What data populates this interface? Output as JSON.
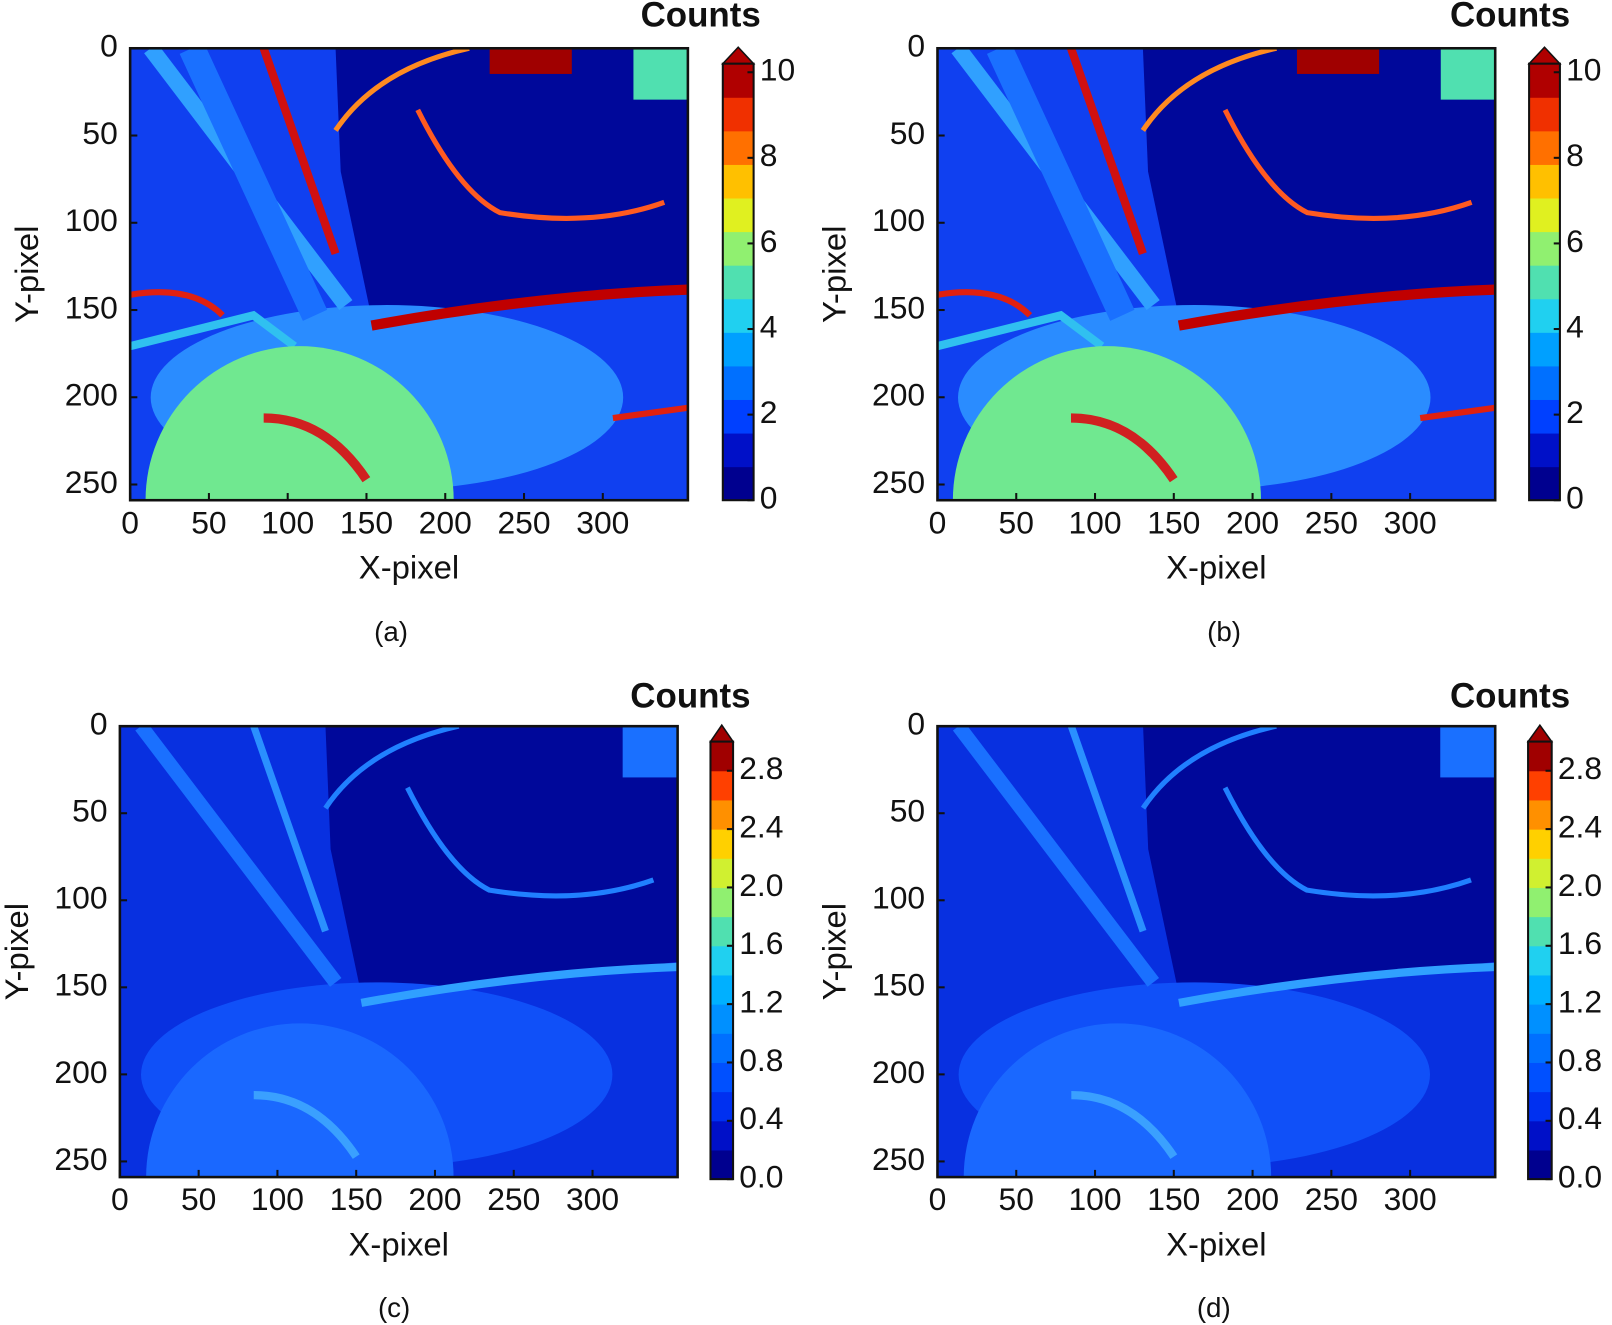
{
  "chart_data": [
    {
      "type": "heatmap",
      "caption": "(a)",
      "xlabel": "X-pixel",
      "ylabel": "Y-pixel",
      "xlim": [
        0,
        354
      ],
      "xticks": [
        0,
        50,
        100,
        150,
        200,
        250,
        300
      ],
      "ylim": [
        0,
        259
      ],
      "yticks": [
        0,
        50,
        100,
        150,
        200,
        250
      ],
      "colorbar": {
        "label": "Counts",
        "lim": [
          0,
          10.2
        ],
        "ticks": [
          0,
          2,
          4,
          6,
          8,
          10
        ],
        "extend": "max",
        "colors": [
          "#00008f",
          "#0010c8",
          "#0040ff",
          "#0070ff",
          "#00a0ff",
          "#20d0f0",
          "#50e0b0",
          "#90f070",
          "#e0f020",
          "#ffc000",
          "#ff7000",
          "#f03000",
          "#b00000"
        ]
      }
    },
    {
      "type": "heatmap",
      "caption": "(b)",
      "xlabel": "X-pixel",
      "ylabel": "Y-pixel",
      "xlim": [
        0,
        354
      ],
      "xticks": [
        0,
        50,
        100,
        150,
        200,
        250,
        300
      ],
      "ylim": [
        0,
        259
      ],
      "yticks": [
        0,
        50,
        100,
        150,
        200,
        250
      ],
      "colorbar": {
        "label": "Counts",
        "lim": [
          0,
          10.2
        ],
        "ticks": [
          0,
          2,
          4,
          6,
          8,
          10
        ],
        "extend": "max",
        "colors": [
          "#00008f",
          "#0010c8",
          "#0040ff",
          "#0070ff",
          "#00a0ff",
          "#20d0f0",
          "#50e0b0",
          "#90f070",
          "#e0f020",
          "#ffc000",
          "#ff7000",
          "#f03000",
          "#b00000"
        ]
      }
    },
    {
      "type": "heatmap",
      "caption": "(c)",
      "xlabel": "X-pixel",
      "ylabel": "Y-pixel",
      "xlim": [
        0,
        354
      ],
      "xticks": [
        0,
        50,
        100,
        150,
        200,
        250,
        300
      ],
      "ylim": [
        0,
        259
      ],
      "yticks": [
        0,
        50,
        100,
        150,
        200,
        250
      ],
      "colorbar": {
        "label": "Counts",
        "lim": [
          0,
          3.0
        ],
        "extend": "max",
        "ticks": [
          {
            "value": 0,
            "label": "0.0"
          },
          0.4,
          0.8,
          1.2,
          1.6,
          {
            "value": 2,
            "label": "2.0"
          },
          2.4,
          2.8
        ],
        "colors": [
          "#00008f",
          "#0010c8",
          "#0030f0",
          "#0050ff",
          "#0070ff",
          "#0090ff",
          "#00b0ff",
          "#20d0f0",
          "#50e0b0",
          "#90f070",
          "#d0f030",
          "#ffd000",
          "#ff9000",
          "#ff4000",
          "#a00000"
        ]
      }
    },
    {
      "type": "heatmap",
      "caption": "(d)",
      "xlabel": "X-pixel",
      "ylabel": "Y-pixel",
      "xlim": [
        0,
        354
      ],
      "xticks": [
        0,
        50,
        100,
        150,
        200,
        250,
        300
      ],
      "ylim": [
        0,
        259
      ],
      "yticks": [
        0,
        50,
        100,
        150,
        200,
        250
      ],
      "colorbar": {
        "label": "Counts",
        "lim": [
          0,
          3.0
        ],
        "extend": "max",
        "ticks": [
          {
            "value": 0,
            "label": "0.0"
          },
          0.4,
          0.8,
          1.2,
          1.6,
          {
            "value": 2,
            "label": "2.0"
          },
          2.4,
          2.8
        ],
        "colors": [
          "#00008f",
          "#0010c8",
          "#0030f0",
          "#0050ff",
          "#0070ff",
          "#0090ff",
          "#00b0ff",
          "#20d0f0",
          "#50e0b0",
          "#90f070",
          "#d0f030",
          "#ffd000",
          "#ff9000",
          "#ff4000",
          "#a00000"
        ]
      }
    }
  ]
}
